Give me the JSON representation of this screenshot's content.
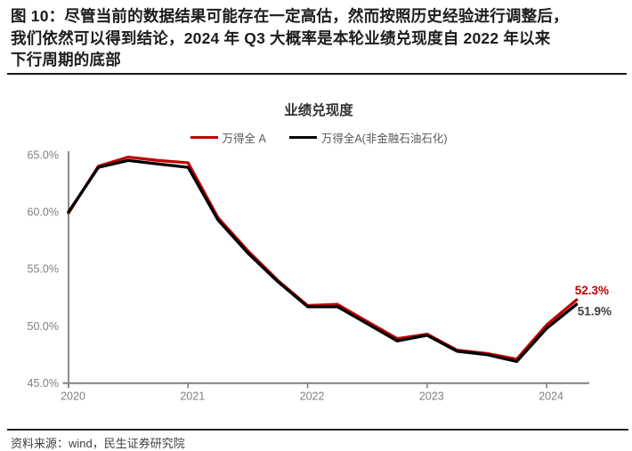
{
  "header": {
    "lines": [
      "图 10：尽管当前的数据结果可能存在一定高估，然而按照历史经验进行调整后，",
      "我们依然可以得到结论，2024 年 Q3 大概率是本轮业绩兑现度自 2022 年以来",
      "下行周期的底部"
    ]
  },
  "footer": {
    "source": "资料来源：wind，民生证券研究院"
  },
  "colors": {
    "accent_red": "#C00000",
    "series_black": "#000000",
    "axis_gray": "#808080",
    "tick_label_gray": "#7f7f7f",
    "end_label_gray": "#404040"
  },
  "chart_data": {
    "type": "line",
    "title": "业绩兑现度",
    "grid": false,
    "legend_position": "top",
    "ylim": [
      45,
      65
    ],
    "y_ticks": [
      "65.0%",
      "60.0%",
      "55.0%",
      "50.0%",
      "45.0%"
    ],
    "x_ticks": [
      "2020",
      "2021",
      "2022",
      "2023",
      "2024"
    ],
    "x": [
      "2020Q1",
      "2020Q2",
      "2020Q3",
      "2020Q4",
      "2021Q1",
      "2021Q2",
      "2021Q3",
      "2021Q4",
      "2022Q1",
      "2022Q2",
      "2022Q3",
      "2022Q4",
      "2023Q1",
      "2023Q2",
      "2023Q3",
      "2023Q4",
      "2024Q1",
      "2024Q2"
    ],
    "series": [
      {
        "name": "万得全 A",
        "color": "#C00000",
        "values": [
          59.9,
          64.0,
          64.8,
          64.5,
          64.3,
          59.5,
          56.6,
          54.0,
          51.8,
          51.9,
          50.4,
          48.9,
          49.3,
          47.9,
          47.6,
          47.1,
          50.1,
          52.3
        ],
        "end_label": "52.3%",
        "end_label_color": "#C00000"
      },
      {
        "name": "万得全A(非金融石油石化)",
        "color": "#000000",
        "values": [
          60.0,
          63.9,
          64.5,
          64.2,
          63.9,
          59.3,
          56.4,
          53.9,
          51.7,
          51.7,
          50.2,
          48.7,
          49.2,
          47.8,
          47.5,
          46.9,
          49.8,
          51.9
        ],
        "end_label": "51.9%",
        "end_label_color": "#404040"
      }
    ]
  }
}
